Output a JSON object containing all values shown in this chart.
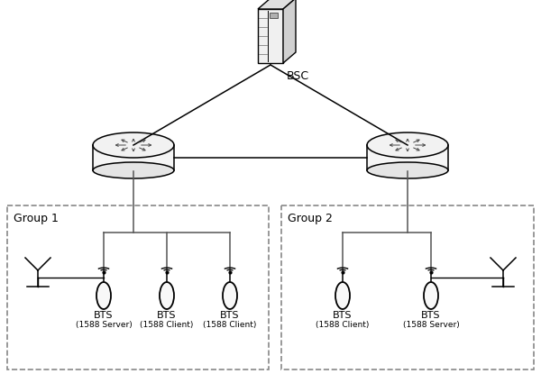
{
  "bg_color": "#ffffff",
  "line_color": "#000000",
  "dashed_color": "#888888",
  "group1_label": "Group 1",
  "group2_label": "Group 2",
  "bsc_label": "BSC",
  "bts_labels_g1": [
    "BTS",
    "BTS",
    "BTS"
  ],
  "bts_sublabels_g1": [
    "(1588 Server)",
    "(1588 Client)",
    "(1588 Client)"
  ],
  "bts_labels_g2": [
    "BTS",
    "BTS"
  ],
  "bts_sublabels_g2": [
    "(1588 Client)",
    "(1588 Server)"
  ],
  "font_size": 8
}
